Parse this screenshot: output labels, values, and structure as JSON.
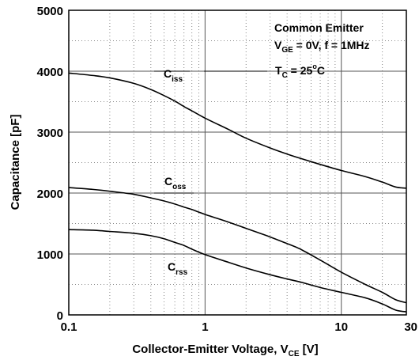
{
  "chart_data": {
    "type": "line",
    "title": "",
    "xlabel": "Collector-Emitter Voltage, V",
    "xlabel_sub": "CE",
    "xlabel_unit": " [V]",
    "ylabel": "Capacitance [pF]",
    "xscale": "log",
    "xlim": [
      0.1,
      30
    ],
    "ylim": [
      0,
      5000
    ],
    "xticks": [
      0.1,
      1,
      10,
      30
    ],
    "xtick_labels": [
      "0.1",
      "1",
      "10",
      "30"
    ],
    "yticks": [
      0,
      1000,
      2000,
      3000,
      4000,
      5000
    ],
    "ytick_labels": [
      "0",
      "1000",
      "2000",
      "3000",
      "4000",
      "5000"
    ],
    "grid": true,
    "annotations": {
      "line1": "Common Emitter",
      "line2_main": "V",
      "line2_sub": "GE",
      "line2_rest": " = 0V, f = 1MHz",
      "line3_main": "T",
      "line3_sub": "C",
      "line3_mid": " = 25",
      "line3_sup": "o",
      "line3_rest": "C"
    },
    "series": [
      {
        "main": "C",
        "sub": "iss",
        "x": [
          0.1,
          0.15,
          0.2,
          0.3,
          0.4,
          0.5,
          0.6,
          0.7,
          0.8,
          1,
          1.5,
          2,
          3,
          4,
          5,
          7,
          10,
          15,
          20,
          25,
          30
        ],
        "y": [
          3970,
          3930,
          3890,
          3800,
          3700,
          3600,
          3510,
          3420,
          3350,
          3230,
          3040,
          2900,
          2740,
          2640,
          2570,
          2470,
          2370,
          2270,
          2180,
          2100,
          2080
        ]
      },
      {
        "main": "C",
        "sub": "oss",
        "x": [
          0.1,
          0.15,
          0.2,
          0.3,
          0.4,
          0.5,
          0.6,
          0.7,
          0.8,
          1,
          1.5,
          2,
          3,
          4,
          5,
          7,
          10,
          15,
          20,
          25,
          30
        ],
        "y": [
          2090,
          2060,
          2030,
          1980,
          1920,
          1870,
          1820,
          1770,
          1730,
          1650,
          1520,
          1420,
          1280,
          1170,
          1080,
          900,
          700,
          500,
          370,
          250,
          200
        ]
      },
      {
        "main": "C",
        "sub": "rss",
        "x": [
          0.1,
          0.15,
          0.2,
          0.3,
          0.4,
          0.5,
          0.6,
          0.7,
          0.8,
          1,
          1.5,
          2,
          3,
          4,
          5,
          7,
          10,
          15,
          20,
          25,
          30
        ],
        "y": [
          1400,
          1390,
          1370,
          1340,
          1300,
          1250,
          1190,
          1140,
          1080,
          990,
          860,
          770,
          660,
          590,
          540,
          450,
          370,
          280,
          180,
          80,
          50
        ]
      }
    ]
  }
}
